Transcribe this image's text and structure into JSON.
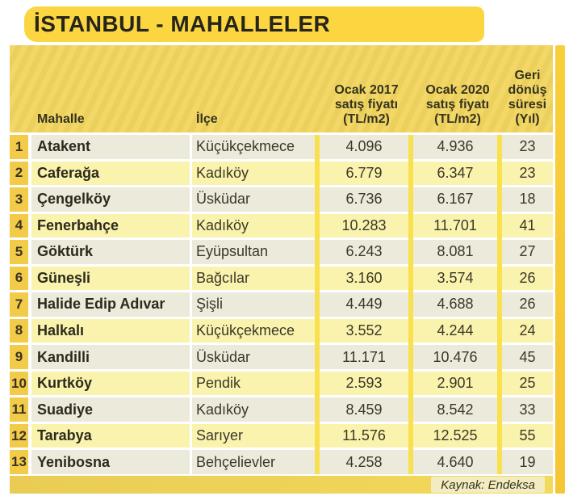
{
  "title": "İSTANBUL - MAHALLELER",
  "header": {
    "mahalle": "Mahalle",
    "ilce": "İlçe",
    "fiyat_2017": "Ocak 2017\nsatış fiyatı\n(TL/m2)",
    "fiyat_2020": "Ocak 2020\nsatış fiyatı\n(TL/m2)",
    "geri": "Geri\ndönüş\nsüresi\n(Yıl)"
  },
  "footer": {
    "source": "Kaynak: Endeksa"
  },
  "colors": {
    "title_bg": "#FBD640",
    "header_bg": "#F2D55F",
    "rank_cell_bg": "#F2CB49",
    "row_odd_bg": "#ECEADB",
    "row_even_bg": "#FAF3AE",
    "column_separator": "#F8E04E",
    "right_strip": "#F7C93A",
    "footer_bg": "#EDD05C",
    "text_dark": "#2C2A1C"
  },
  "chart_data": {
    "type": "table",
    "title": "İSTANBUL - MAHALLELER",
    "columns": [
      "Mahalle",
      "İlçe",
      "Ocak 2017 satış fiyatı (TL/m2)",
      "Ocak 2020 satış fiyatı (TL/m2)",
      "Geri dönüş süresi (Yıl)"
    ],
    "rows": [
      {
        "rank": 1,
        "mahalle": "Atakent",
        "ilce": "Küçükçekmece",
        "fiyat_2017": "4.096",
        "fiyat_2020": "4.936",
        "geri_donus_yil": 23
      },
      {
        "rank": 2,
        "mahalle": "Caferağa",
        "ilce": "Kadıköy",
        "fiyat_2017": "6.779",
        "fiyat_2020": "6.347",
        "geri_donus_yil": 23
      },
      {
        "rank": 3,
        "mahalle": "Çengelköy",
        "ilce": "Üsküdar",
        "fiyat_2017": "6.736",
        "fiyat_2020": "6.167",
        "geri_donus_yil": 18
      },
      {
        "rank": 4,
        "mahalle": "Fenerbahçe",
        "ilce": "Kadıköy",
        "fiyat_2017": "10.283",
        "fiyat_2020": "11.701",
        "geri_donus_yil": 41
      },
      {
        "rank": 5,
        "mahalle": "Göktürk",
        "ilce": "Eyüpsultan",
        "fiyat_2017": "6.243",
        "fiyat_2020": "8.081",
        "geri_donus_yil": 27
      },
      {
        "rank": 6,
        "mahalle": "Güneşli",
        "ilce": "Bağcılar",
        "fiyat_2017": "3.160",
        "fiyat_2020": "3.574",
        "geri_donus_yil": 26
      },
      {
        "rank": 7,
        "mahalle": "Halide Edip Adıvar",
        "ilce": "Şişli",
        "fiyat_2017": "4.449",
        "fiyat_2020": "4.688",
        "geri_donus_yil": 26
      },
      {
        "rank": 8,
        "mahalle": "Halkalı",
        "ilce": "Küçükçekmece",
        "fiyat_2017": "3.552",
        "fiyat_2020": "4.244",
        "geri_donus_yil": 24
      },
      {
        "rank": 9,
        "mahalle": "Kandilli",
        "ilce": "Üsküdar",
        "fiyat_2017": "11.171",
        "fiyat_2020": "10.476",
        "geri_donus_yil": 45
      },
      {
        "rank": 10,
        "mahalle": "Kurtköy",
        "ilce": "Pendik",
        "fiyat_2017": "2.593",
        "fiyat_2020": "2.901",
        "geri_donus_yil": 25
      },
      {
        "rank": 11,
        "mahalle": "Suadiye",
        "ilce": "Kadıköy",
        "fiyat_2017": "8.459",
        "fiyat_2020": "8.542",
        "geri_donus_yil": 33
      },
      {
        "rank": 12,
        "mahalle": "Tarabya",
        "ilce": "Sarıyer",
        "fiyat_2017": "11.576",
        "fiyat_2020": "12.525",
        "geri_donus_yil": 55
      },
      {
        "rank": 13,
        "mahalle": "Yenibosna",
        "ilce": "Behçelievler",
        "fiyat_2017": "4.258",
        "fiyat_2020": "4.640",
        "geri_donus_yil": 19
      }
    ],
    "source": "Kaynak: Endeksa"
  }
}
